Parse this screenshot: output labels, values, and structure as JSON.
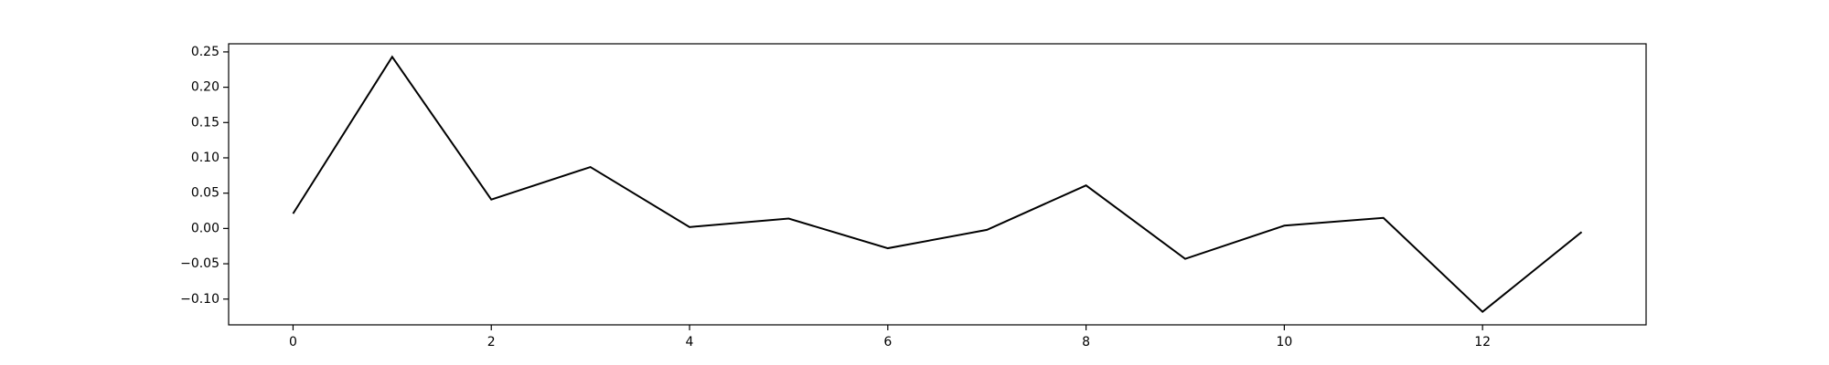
{
  "chart_data": {
    "type": "line",
    "title": "",
    "xlabel": "",
    "ylabel": "",
    "x": [
      0,
      1,
      2,
      3,
      4,
      5,
      6,
      7,
      8,
      9,
      10,
      11,
      12,
      13
    ],
    "series": [
      {
        "values": [
          0.021,
          0.243,
          0.041,
          0.087,
          0.002,
          0.014,
          -0.028,
          -0.002,
          0.061,
          -0.043,
          0.004,
          0.015,
          -0.118,
          -0.005
        ]
      }
    ],
    "xlim": [
      -0.65,
      13.65
    ],
    "ylim": [
      -0.1365,
      0.2615
    ],
    "xticks": [
      0,
      2,
      4,
      6,
      8,
      10,
      12
    ],
    "xtick_labels": [
      "0",
      "2",
      "4",
      "6",
      "8",
      "10",
      "12"
    ],
    "yticks": [
      -0.1,
      -0.05,
      0.0,
      0.05,
      0.1,
      0.15,
      0.2,
      0.25
    ],
    "ytick_labels": [
      "−0.10",
      "−0.05",
      "0.00",
      "0.05",
      "0.10",
      "0.15",
      "0.20",
      "0.25"
    ],
    "grid": false,
    "legend": false,
    "line_color": "#000000"
  }
}
